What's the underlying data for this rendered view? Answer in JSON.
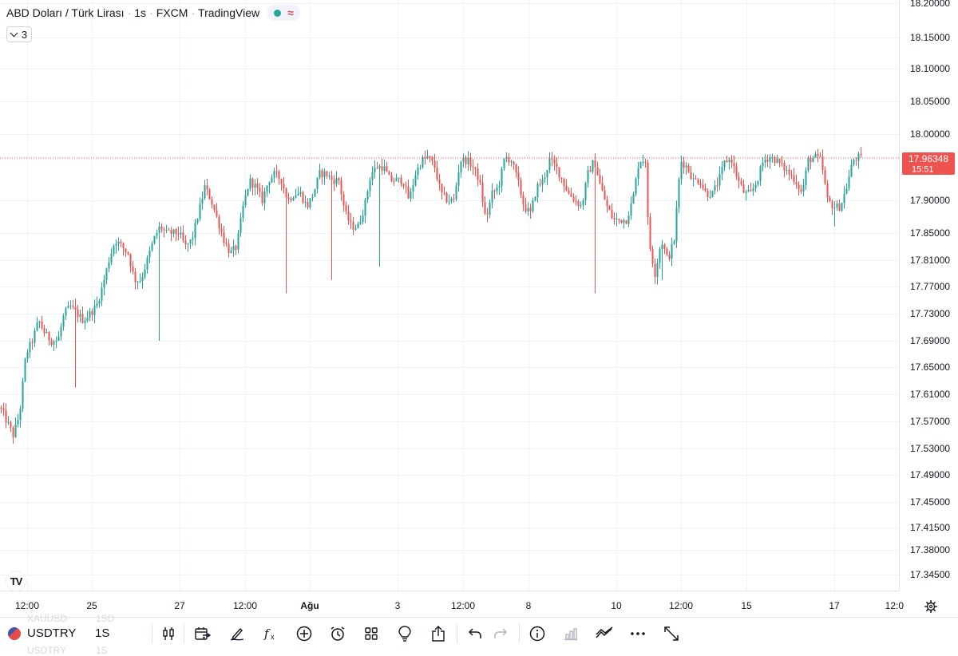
{
  "legend": {
    "title": "ABD Doları / Türk Lirası",
    "interval": "1s",
    "exchange": "FXCM",
    "source": "TradingView"
  },
  "indicators": {
    "count": "3"
  },
  "price_badge": {
    "price": "17.96348",
    "countdown": "15:51"
  },
  "colors": {
    "up": "#26a69a",
    "down": "#ef5350",
    "grid": "#f0f3fa",
    "badge": "#ef5350"
  },
  "toolbar": {
    "symbol": "USDTRY",
    "interval": "1S",
    "ghost_top": [
      "XAUUSD",
      "1SD"
    ],
    "ghost_bottom": [
      "USDTRY",
      "1S"
    ],
    "icons": [
      "candles-icon",
      "calendar-compare-icon",
      "draw-pen-icon",
      "fx-indicator-icon",
      "add-circle-icon",
      "alarm-icon",
      "layout-grid-icon",
      "lightbulb-icon",
      "share-icon",
      "undo-icon",
      "redo-icon",
      "info-icon",
      "bar-chart-icon",
      "compare-icon",
      "more-icon",
      "fullscreen-icon"
    ]
  },
  "chart_data": {
    "type": "candlestick",
    "symbol": "USDTRY",
    "title": "ABD Doları / Türk Lirası",
    "interval": "1s",
    "last_price": 17.96348,
    "ylim": [
      17.32,
      18.2
    ],
    "y_ticks": [
      18.2,
      18.15,
      18.1,
      18.05,
      18.0,
      17.9634,
      17.9,
      17.85,
      17.81,
      17.77,
      17.73,
      17.69,
      17.65,
      17.61,
      17.57,
      17.53,
      17.49,
      17.45,
      17.415,
      17.38,
      17.345
    ],
    "y_tick_labels": [
      "18.20000",
      "18.15000",
      "18.10000",
      "18.05000",
      "18.00000",
      "17.96348",
      "17.90000",
      "17.85000",
      "17.81000",
      "17.77000",
      "17.73000",
      "17.69000",
      "17.65000",
      "17.61000",
      "17.57000",
      "17.53000",
      "17.49000",
      "17.45000",
      "17.41500",
      "17.38000",
      "17.34500"
    ],
    "x_labels": [
      "12:00",
      "25",
      "27",
      "12:00",
      "Ağu",
      "3",
      "12:00",
      "8",
      "10",
      "12:00",
      "15",
      "17",
      "12:0"
    ],
    "grid": true,
    "path": [
      [
        0,
        17.59
      ],
      [
        8,
        17.57
      ],
      [
        16,
        17.55
      ],
      [
        24,
        17.58
      ],
      [
        32,
        17.67
      ],
      [
        40,
        17.69
      ],
      [
        48,
        17.72
      ],
      [
        56,
        17.7
      ],
      [
        64,
        17.69
      ],
      [
        72,
        17.69
      ],
      [
        80,
        17.73
      ],
      [
        88,
        17.74
      ],
      [
        96,
        17.73
      ],
      [
        104,
        17.72
      ],
      [
        112,
        17.73
      ],
      [
        120,
        17.74
      ],
      [
        128,
        17.77
      ],
      [
        136,
        17.81
      ],
      [
        144,
        17.84
      ],
      [
        152,
        17.83
      ],
      [
        160,
        17.82
      ],
      [
        168,
        17.78
      ],
      [
        176,
        17.78
      ],
      [
        184,
        17.81
      ],
      [
        192,
        17.84
      ],
      [
        200,
        17.86
      ],
      [
        208,
        17.85
      ],
      [
        216,
        17.85
      ],
      [
        224,
        17.85
      ],
      [
        232,
        17.83
      ],
      [
        240,
        17.84
      ],
      [
        248,
        17.88
      ],
      [
        256,
        17.92
      ],
      [
        264,
        17.9
      ],
      [
        272,
        17.87
      ],
      [
        280,
        17.84
      ],
      [
        288,
        17.82
      ],
      [
        296,
        17.83
      ],
      [
        304,
        17.89
      ],
      [
        312,
        17.93
      ],
      [
        320,
        17.92
      ],
      [
        328,
        17.9
      ],
      [
        336,
        17.93
      ],
      [
        344,
        17.94
      ],
      [
        352,
        17.93
      ],
      [
        360,
        17.9
      ],
      [
        368,
        17.91
      ],
      [
        376,
        17.91
      ],
      [
        384,
        17.89
      ],
      [
        392,
        17.91
      ],
      [
        400,
        17.94
      ],
      [
        408,
        17.94
      ],
      [
        416,
        17.93
      ],
      [
        424,
        17.93
      ],
      [
        432,
        17.88
      ],
      [
        440,
        17.86
      ],
      [
        448,
        17.86
      ],
      [
        456,
        17.89
      ],
      [
        464,
        17.94
      ],
      [
        472,
        17.95
      ],
      [
        480,
        17.95
      ],
      [
        488,
        17.93
      ],
      [
        496,
        17.93
      ],
      [
        504,
        17.93
      ],
      [
        512,
        17.9
      ],
      [
        520,
        17.94
      ],
      [
        528,
        17.96
      ],
      [
        536,
        17.965
      ],
      [
        544,
        17.95
      ],
      [
        552,
        17.91
      ],
      [
        560,
        17.9
      ],
      [
        568,
        17.9
      ],
      [
        576,
        17.96
      ],
      [
        584,
        17.96
      ],
      [
        592,
        17.95
      ],
      [
        600,
        17.93
      ],
      [
        608,
        17.87
      ],
      [
        616,
        17.91
      ],
      [
        624,
        17.92
      ],
      [
        632,
        17.965
      ],
      [
        640,
        17.96
      ],
      [
        648,
        17.93
      ],
      [
        656,
        17.89
      ],
      [
        664,
        17.88
      ],
      [
        672,
        17.92
      ],
      [
        680,
        17.93
      ],
      [
        688,
        17.96
      ],
      [
        696,
        17.95
      ],
      [
        704,
        17.93
      ],
      [
        712,
        17.91
      ],
      [
        720,
        17.9
      ],
      [
        728,
        17.89
      ],
      [
        736,
        17.94
      ],
      [
        744,
        17.96
      ],
      [
        752,
        17.92
      ],
      [
        760,
        17.89
      ],
      [
        768,
        17.87
      ],
      [
        776,
        17.87
      ],
      [
        784,
        17.87
      ],
      [
        792,
        17.9
      ],
      [
        800,
        17.96
      ],
      [
        808,
        17.96
      ],
      [
        812,
        17.84
      ],
      [
        820,
        17.79
      ],
      [
        828,
        17.84
      ],
      [
        836,
        17.81
      ],
      [
        844,
        17.84
      ],
      [
        852,
        17.96
      ],
      [
        860,
        17.95
      ],
      [
        868,
        17.93
      ],
      [
        876,
        17.93
      ],
      [
        884,
        17.91
      ],
      [
        892,
        17.91
      ],
      [
        900,
        17.93
      ],
      [
        908,
        17.96
      ],
      [
        916,
        17.96
      ],
      [
        924,
        17.93
      ],
      [
        932,
        17.91
      ],
      [
        940,
        17.91
      ],
      [
        948,
        17.93
      ],
      [
        956,
        17.96
      ],
      [
        964,
        17.965
      ],
      [
        972,
        17.96
      ],
      [
        980,
        17.95
      ],
      [
        988,
        17.94
      ],
      [
        996,
        17.93
      ],
      [
        1004,
        17.91
      ],
      [
        1012,
        17.96
      ],
      [
        1020,
        17.965
      ],
      [
        1028,
        17.96
      ],
      [
        1036,
        17.9
      ],
      [
        1044,
        17.89
      ],
      [
        1052,
        17.89
      ],
      [
        1060,
        17.92
      ],
      [
        1068,
        17.96
      ],
      [
        1076,
        17.965
      ],
      [
        1080,
        17.963
      ]
    ]
  }
}
